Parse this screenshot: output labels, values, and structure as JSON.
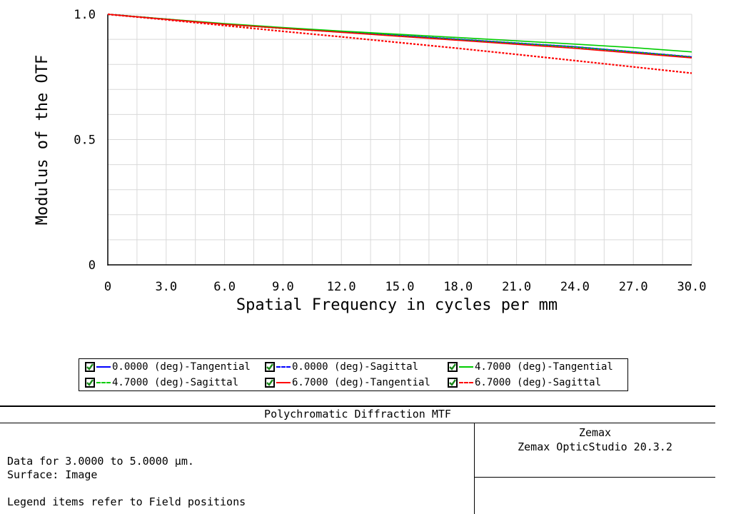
{
  "chart_data": {
    "type": "line",
    "title": "",
    "xlabel": "Spatial Frequency in cycles per mm",
    "ylabel": "Modulus of the OTF",
    "xlim": [
      0,
      30
    ],
    "ylim": [
      0,
      1.0
    ],
    "x_ticks": [
      "0",
      "3.0",
      "6.0",
      "9.0",
      "12.0",
      "15.0",
      "18.0",
      "21.0",
      "24.0",
      "27.0",
      "30.0"
    ],
    "y_ticks": [
      "0",
      "0.5",
      "1.0"
    ],
    "grid": true,
    "legend_placement": "below",
    "x": [
      0,
      3,
      6,
      9,
      12,
      15,
      18,
      21,
      24,
      27,
      30
    ],
    "series": [
      {
        "name": "0.0000 (deg)-Tangential",
        "color": "#0000ff",
        "dash": "solid",
        "values": [
          1.0,
          0.98,
          0.96,
          0.945,
          0.93,
          0.915,
          0.9,
          0.885,
          0.87,
          0.85,
          0.83
        ]
      },
      {
        "name": "0.0000 (deg)-Sagittal",
        "color": "#0000ff",
        "dash": "dashed",
        "values": [
          1.0,
          0.98,
          0.96,
          0.945,
          0.93,
          0.915,
          0.9,
          0.885,
          0.87,
          0.85,
          0.83
        ]
      },
      {
        "name": "4.7000 (deg)-Tangential",
        "color": "#00cc00",
        "dash": "solid",
        "values": [
          1.0,
          0.981,
          0.963,
          0.947,
          0.933,
          0.92,
          0.907,
          0.894,
          0.881,
          0.867,
          0.85
        ]
      },
      {
        "name": "4.7000 (deg)-Sagittal",
        "color": "#00cc00",
        "dash": "dashed",
        "values": [
          1.0,
          0.98,
          0.96,
          0.944,
          0.929,
          0.914,
          0.899,
          0.884,
          0.869,
          0.849,
          0.829
        ]
      },
      {
        "name": "6.7000 (deg)-Tangential",
        "color": "#ff0000",
        "dash": "solid",
        "values": [
          1.0,
          0.98,
          0.96,
          0.944,
          0.928,
          0.912,
          0.896,
          0.88,
          0.864,
          0.845,
          0.826
        ]
      },
      {
        "name": "6.7000 (deg)-Sagittal",
        "color": "#ff0000",
        "dash": "dashed",
        "values": [
          1.0,
          0.978,
          0.955,
          0.932,
          0.91,
          0.887,
          0.864,
          0.84,
          0.815,
          0.79,
          0.765
        ]
      }
    ]
  },
  "footer": {
    "title": "Polychromatic Diffraction MTF",
    "data_range": "Data for 3.0000 to 5.0000 µm.",
    "surface": "Surface: Image",
    "legend_note": "Legend items refer to Field positions",
    "company": "Zemax",
    "product": "Zemax OpticStudio 20.3.2"
  },
  "colors": {
    "check": "#1a8a1a",
    "grid": "#d9d9d9",
    "axis": "#000000"
  }
}
